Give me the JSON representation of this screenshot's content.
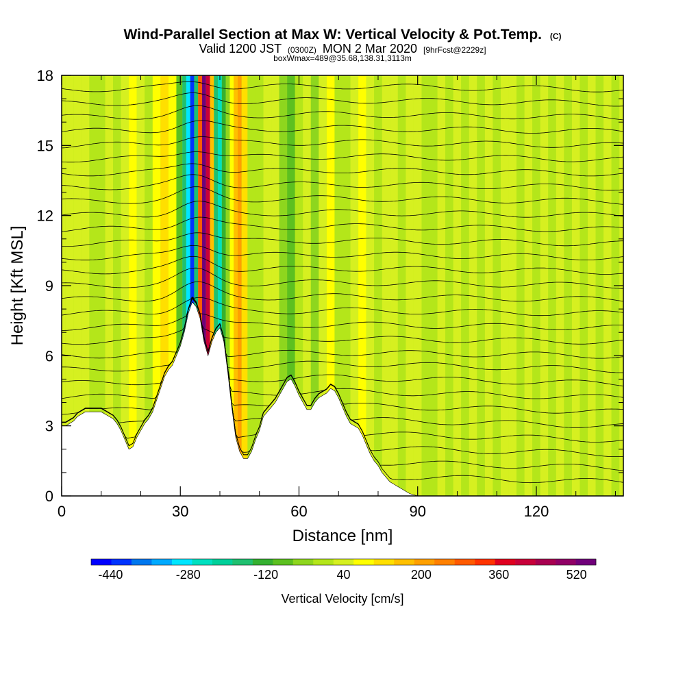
{
  "chart_data": {
    "type": "heatmap",
    "title": "Wind-Parallel Section at Max W: Vertical Velocity & Pot.Temp.",
    "title_mark": "(C)",
    "subtitle": {
      "prefix": "Valid 1200 JST",
      "utc": "(0300Z)",
      "date": "MON 2 Mar 2020",
      "forecast": "[9hrFcst@2229z]"
    },
    "subtitle2": "boxWmax=489@35.68,138.31,3113m",
    "xlabel": "Distance [nm]",
    "ylabel": "Height [Kft MSL]",
    "xlim": [
      0,
      142
    ],
    "ylim": [
      0,
      18
    ],
    "x_ticks": [
      0,
      30,
      60,
      90,
      120
    ],
    "y_ticks": [
      0,
      3,
      6,
      9,
      12,
      15,
      18
    ],
    "colorbar": {
      "label": "Vertical Velocity [cm/s]",
      "tick_values": [
        -440,
        -280,
        -120,
        40,
        200,
        360,
        520
      ],
      "tick_labels": [
        "-440",
        "-280",
        "-120",
        "40",
        "200",
        "360",
        "520"
      ],
      "levels": [
        -480,
        -440,
        -400,
        -360,
        -320,
        -280,
        -240,
        -200,
        -160,
        -120,
        -80,
        -40,
        0,
        40,
        80,
        120,
        160,
        200,
        240,
        280,
        320,
        360,
        400,
        440,
        480,
        520,
        560
      ],
      "colors": [
        "#0000ff",
        "#0033ff",
        "#0077ee",
        "#00aaff",
        "#00e6ff",
        "#00e0c0",
        "#00d09a",
        "#20c070",
        "#35b030",
        "#5cc020",
        "#8ed61e",
        "#b4e61a",
        "#d6f020",
        "#ffff00",
        "#ffdf00",
        "#ffc000",
        "#ffa000",
        "#ff8000",
        "#ff5a00",
        "#ff3300",
        "#e00020",
        "#c8003a",
        "#a80050",
        "#900066",
        "#70007a"
      ]
    },
    "terrain": {
      "x": [
        0,
        1,
        2,
        3,
        4,
        5,
        6,
        7,
        8,
        9,
        10,
        11,
        12,
        13,
        14,
        15,
        16,
        17,
        18,
        19,
        20,
        21,
        22,
        23,
        24,
        25,
        26,
        27,
        28,
        29,
        30,
        31,
        32,
        33,
        34,
        35,
        36,
        37,
        38,
        39,
        40,
        41,
        42,
        43,
        44,
        45,
        46,
        47,
        48,
        49,
        50,
        51,
        52,
        53,
        54,
        55,
        56,
        57,
        58,
        59,
        60,
        61,
        62,
        63,
        64,
        65,
        66,
        67,
        68,
        69,
        70,
        71,
        72,
        73,
        74,
        75,
        76,
        77,
        78,
        79,
        80,
        81,
        82,
        83,
        84,
        85,
        86,
        87,
        88,
        89,
        90,
        91,
        92,
        93,
        94,
        95,
        96,
        97,
        98,
        99,
        100,
        101,
        102,
        103,
        104,
        105,
        106,
        107,
        108,
        109,
        110,
        111,
        112,
        113,
        114,
        115,
        116,
        117,
        118,
        119,
        120,
        121,
        122,
        123,
        124,
        125,
        126,
        127,
        128,
        129,
        130,
        131,
        132,
        133,
        134,
        135,
        136,
        137,
        138,
        139,
        140,
        141,
        142
      ],
      "kft": [
        3.0,
        3.0,
        3.1,
        3.2,
        3.4,
        3.5,
        3.6,
        3.6,
        3.6,
        3.6,
        3.6,
        3.5,
        3.4,
        3.3,
        3.1,
        2.8,
        2.4,
        2.0,
        2.1,
        2.5,
        2.8,
        3.1,
        3.3,
        3.6,
        4.1,
        4.6,
        5.1,
        5.4,
        5.6,
        6.0,
        6.4,
        7.0,
        7.8,
        8.3,
        8.1,
        7.6,
        6.6,
        6.0,
        6.6,
        7.0,
        7.2,
        6.6,
        5.3,
        3.8,
        2.5,
        1.9,
        1.6,
        1.6,
        1.9,
        2.4,
        2.8,
        3.4,
        3.6,
        3.8,
        4.0,
        4.3,
        4.6,
        4.9,
        5.0,
        4.7,
        4.3,
        4.0,
        3.7,
        3.7,
        4.0,
        4.2,
        4.3,
        4.4,
        4.6,
        4.5,
        4.2,
        3.8,
        3.4,
        3.1,
        3.0,
        2.9,
        2.6,
        2.2,
        1.8,
        1.5,
        1.3,
        1.0,
        0.8,
        0.6,
        0.5,
        0.4,
        0.3,
        0.2,
        0.1,
        0.05,
        0,
        0,
        0,
        0,
        0,
        0,
        0,
        0,
        0,
        0,
        0,
        0,
        0,
        0,
        0,
        0,
        0,
        0,
        0,
        0,
        0,
        0,
        0,
        0,
        0,
        0,
        0,
        0,
        0,
        0,
        0,
        0,
        0,
        0,
        0,
        0,
        0,
        0,
        0,
        0,
        0,
        0,
        0,
        0,
        0,
        0,
        0,
        0,
        0,
        0,
        0,
        0,
        0
      ]
    },
    "velocity_columns": [
      {
        "x": 0,
        "w": 12
      },
      {
        "x": 2,
        "w": 35
      },
      {
        "x": 4,
        "w": 28
      },
      {
        "x": 6,
        "w": 12
      },
      {
        "x": 8,
        "w": -30
      },
      {
        "x": 10,
        "w": -5
      },
      {
        "x": 12,
        "w": 18
      },
      {
        "x": 14,
        "w": -35
      },
      {
        "x": 16,
        "w": 10
      },
      {
        "x": 18,
        "w": 75
      },
      {
        "x": 20,
        "w": 30
      },
      {
        "x": 22,
        "w": -20
      },
      {
        "x": 24,
        "w": 55
      },
      {
        "x": 26,
        "w": 90
      },
      {
        "x": 28,
        "w": 40
      },
      {
        "x": 30,
        "w": -120
      },
      {
        "x": 31,
        "w": -200
      },
      {
        "x": 32,
        "w": -300
      },
      {
        "x": 33,
        "w": -420
      },
      {
        "x": 34,
        "w": -180
      },
      {
        "x": 35,
        "w": 250
      },
      {
        "x": 36,
        "w": 489
      },
      {
        "x": 37,
        "w": 380
      },
      {
        "x": 38,
        "w": 120
      },
      {
        "x": 39,
        "w": -200
      },
      {
        "x": 40,
        "w": -260
      },
      {
        "x": 41,
        "w": -160
      },
      {
        "x": 42,
        "w": -60
      },
      {
        "x": 43,
        "w": 60
      },
      {
        "x": 44,
        "w": 140
      },
      {
        "x": 45,
        "w": 180
      },
      {
        "x": 46,
        "w": 90
      },
      {
        "x": 48,
        "w": -20
      },
      {
        "x": 50,
        "w": -40
      },
      {
        "x": 52,
        "w": 20
      },
      {
        "x": 54,
        "w": 5
      },
      {
        "x": 56,
        "w": -50
      },
      {
        "x": 58,
        "w": -90
      },
      {
        "x": 60,
        "w": -20
      },
      {
        "x": 62,
        "w": 30
      },
      {
        "x": 64,
        "w": -70
      },
      {
        "x": 66,
        "w": 20
      },
      {
        "x": 68,
        "w": 40
      },
      {
        "x": 70,
        "w": -20
      },
      {
        "x": 72,
        "w": -40
      },
      {
        "x": 74,
        "w": 25
      },
      {
        "x": 76,
        "w": 45
      },
      {
        "x": 78,
        "w": 15
      },
      {
        "x": 80,
        "w": -30
      },
      {
        "x": 82,
        "w": 20
      },
      {
        "x": 84,
        "w": 10
      },
      {
        "x": 86,
        "w": -25
      },
      {
        "x": 88,
        "w": 30
      },
      {
        "x": 90,
        "w": 10
      },
      {
        "x": 92,
        "w": -10
      },
      {
        "x": 94,
        "w": -30
      },
      {
        "x": 96,
        "w": 15
      },
      {
        "x": 98,
        "w": -15
      },
      {
        "x": 100,
        "w": 10
      },
      {
        "x": 102,
        "w": -25
      },
      {
        "x": 104,
        "w": 12
      },
      {
        "x": 106,
        "w": -10
      },
      {
        "x": 108,
        "w": 10
      },
      {
        "x": 110,
        "w": -20
      },
      {
        "x": 112,
        "w": 15
      },
      {
        "x": 114,
        "w": 20
      },
      {
        "x": 116,
        "w": -25
      },
      {
        "x": 118,
        "w": 10
      },
      {
        "x": 120,
        "w": -15
      },
      {
        "x": 122,
        "w": 15
      },
      {
        "x": 124,
        "w": -30
      },
      {
        "x": 126,
        "w": 12
      },
      {
        "x": 128,
        "w": -15
      },
      {
        "x": 130,
        "w": 20
      },
      {
        "x": 132,
        "w": -20
      },
      {
        "x": 134,
        "w": 10
      },
      {
        "x": 136,
        "w": -30
      },
      {
        "x": 138,
        "w": 15
      },
      {
        "x": 140,
        "w": -25
      },
      {
        "x": 142,
        "w": 10
      }
    ],
    "isentropes_kft": [
      0.6,
      1.2,
      1.8,
      2.4,
      3.0,
      3.6,
      4.2,
      4.8,
      5.4,
      6.0,
      6.6,
      7.2,
      7.8,
      8.4,
      9.0,
      9.6,
      10.2,
      10.8,
      11.4,
      12.0,
      12.6,
      13.2,
      13.8,
      14.4,
      15.0,
      15.6,
      16.2,
      16.8,
      17.4
    ]
  }
}
